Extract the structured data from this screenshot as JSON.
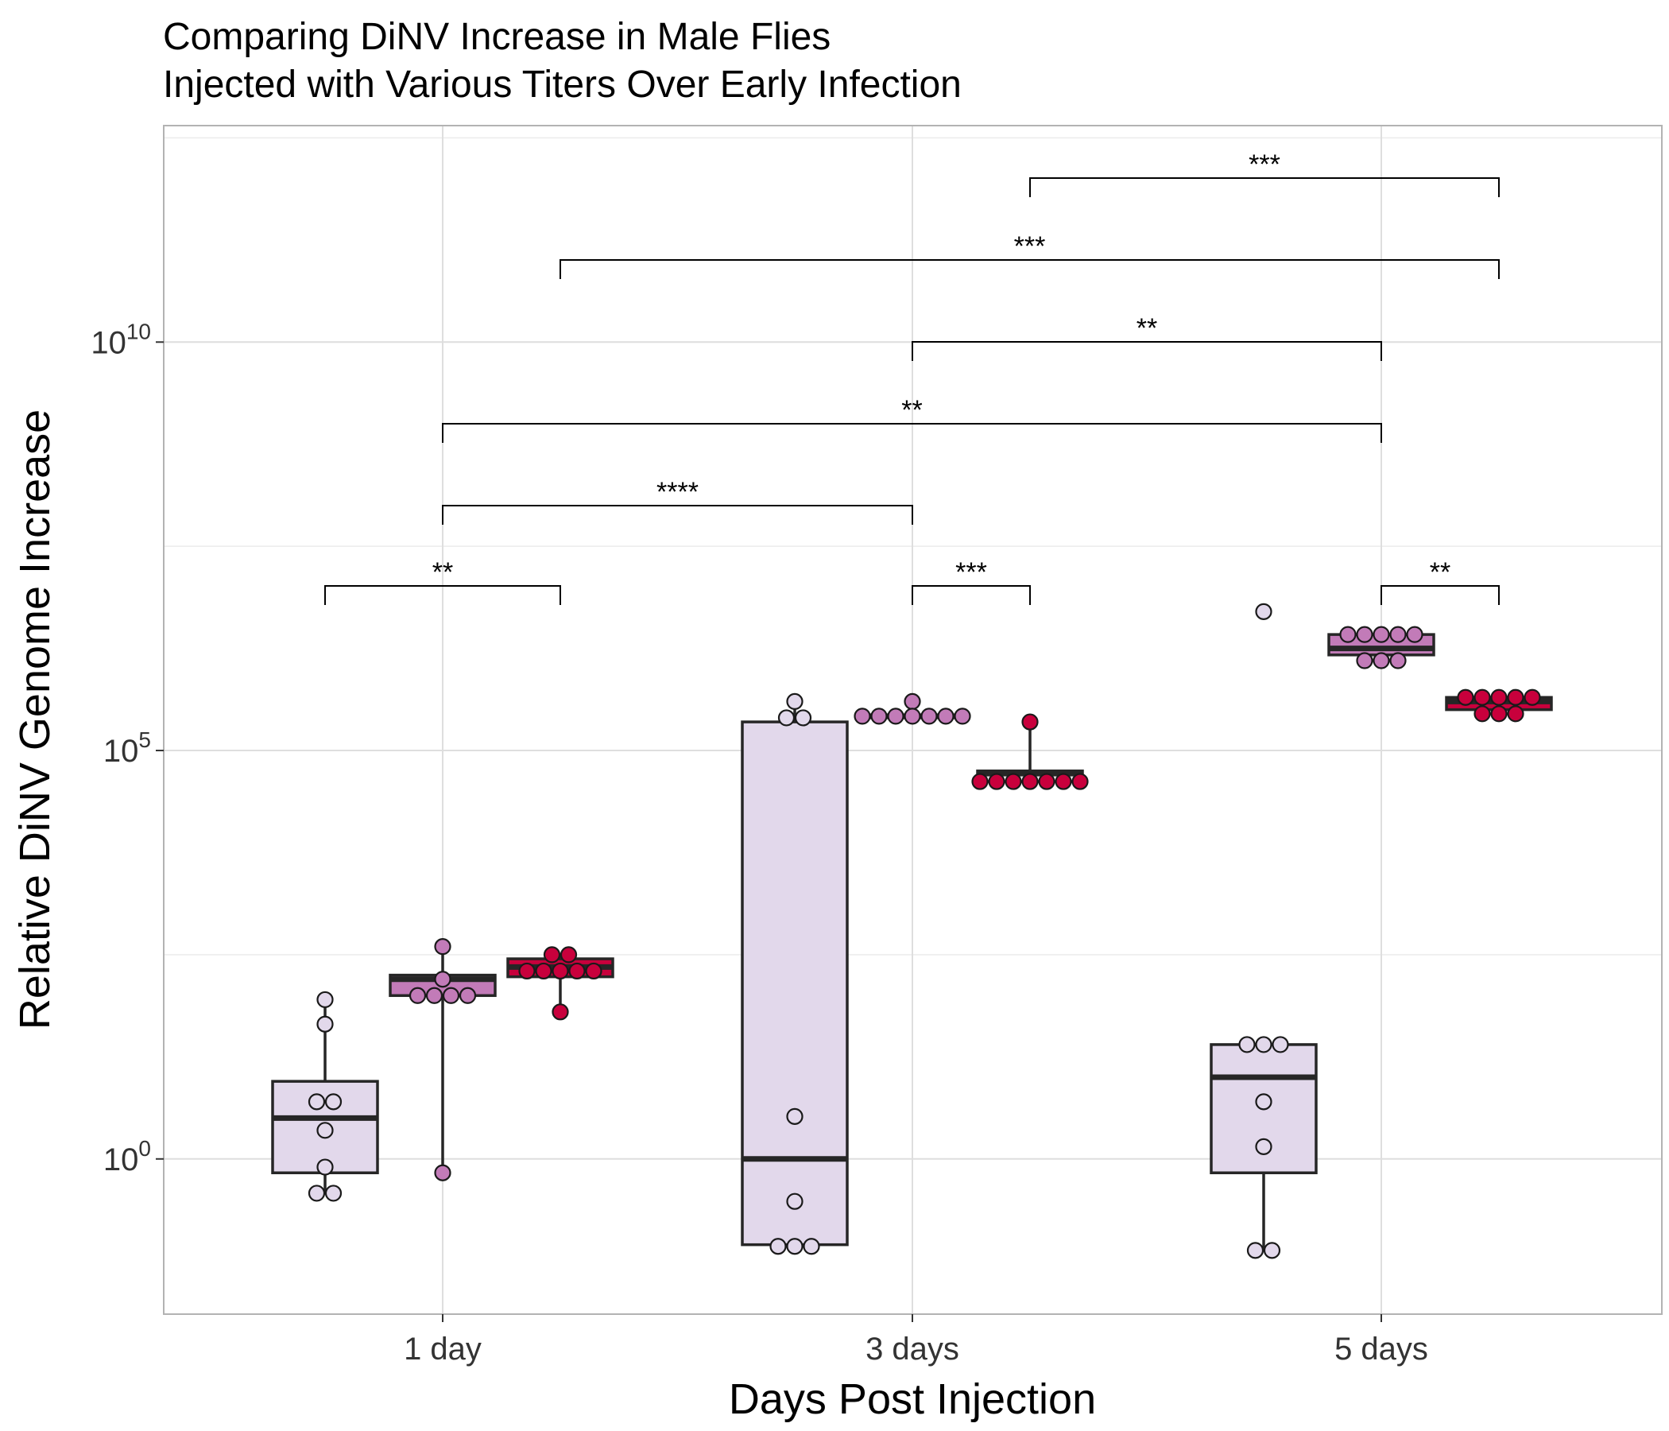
{
  "chart_data": {
    "type": "box",
    "title": "Comparing DiNV Increase in Male Flies\nInjected with Various Titers Over Early Infection",
    "title_lines": [
      "Comparing DiNV Increase in Male Flies",
      "Injected with Various Titers Over Early Infection"
    ],
    "xlabel": "Days Post Injection",
    "ylabel": "Relative DiNV Genome Increase",
    "y_scale": "log10",
    "ylim_log10": [
      -1.9,
      12.65
    ],
    "y_ticks": [
      {
        "exp": 0,
        "base": "10",
        "sup": "0"
      },
      {
        "exp": 5,
        "base": "10",
        "sup": "5"
      },
      {
        "exp": 10,
        "base": "10",
        "sup": "10"
      }
    ],
    "y_minor_grid_log10": [
      2.5,
      7.5,
      12.5
    ],
    "categories": [
      "1 day",
      "3 days",
      "5 days"
    ],
    "grid": true,
    "legend": "none",
    "series": [
      {
        "color": "#e2d8eb",
        "groups": [
          {
            "category": "1 day",
            "box_log10": {
              "min": -0.42,
              "q1": -0.17,
              "median": 0.5,
              "q3": 0.95,
              "max": 1.95
            },
            "points_log10": [
              1.95,
              1.65,
              0.7,
              0.7,
              0.35,
              -0.1,
              -0.42,
              -0.42
            ]
          },
          {
            "category": "3 days",
            "box_log10": {
              "min": -1.05,
              "q1": -1.05,
              "median": 0.0,
              "q3": 5.35,
              "max": 5.6
            },
            "points_log10": [
              5.6,
              5.4,
              5.4,
              0.52,
              -0.52,
              -1.07,
              -1.07,
              -1.07
            ]
          },
          {
            "category": "5 days",
            "box_log10": {
              "min": -1.1,
              "q1": -0.17,
              "median": 1.0,
              "q3": 1.4,
              "max": 1.4
            },
            "points_log10": [
              6.7,
              1.4,
              1.4,
              1.4,
              0.7,
              0.15,
              -1.12,
              -1.12
            ]
          }
        ]
      },
      {
        "color": "#c27bb8",
        "groups": [
          {
            "category": "1 day",
            "box_log10": {
              "min": -0.17,
              "q1": 2.0,
              "median": 2.2,
              "q3": 2.25,
              "max": 2.6
            },
            "points_log10": [
              2.6,
              2.2,
              2.0,
              2.0,
              2.0,
              2.0,
              -0.17
            ]
          },
          {
            "category": "3 days",
            "box_log10": {
              "min": 5.42,
              "q1": 5.42,
              "median": 5.42,
              "q3": 5.42,
              "max": 5.6
            },
            "points_log10": [
              5.6,
              5.42,
              5.42,
              5.42,
              5.42,
              5.42,
              5.42,
              5.42
            ]
          },
          {
            "category": "5 days",
            "box_log10": {
              "min": 6.1,
              "q1": 6.17,
              "median": 6.25,
              "q3": 6.42,
              "max": 6.42
            },
            "points_log10": [
              6.42,
              6.42,
              6.42,
              6.42,
              6.42,
              6.1,
              6.1,
              6.1
            ]
          }
        ]
      },
      {
        "color": "#c8003c",
        "groups": [
          {
            "category": "1 day",
            "box_log10": {
              "min": 1.8,
              "q1": 2.23,
              "median": 2.35,
              "q3": 2.45,
              "max": 2.5
            },
            "points_log10": [
              2.5,
              2.5,
              2.3,
              2.3,
              2.3,
              2.3,
              2.3,
              1.8
            ]
          },
          {
            "category": "3 days",
            "box_log10": {
              "min": 4.62,
              "q1": 4.7,
              "median": 4.72,
              "q3": 4.75,
              "max": 5.35
            },
            "points_log10": [
              5.35,
              4.62,
              4.62,
              4.62,
              4.62,
              4.62,
              4.62,
              4.62
            ]
          },
          {
            "category": "5 days",
            "box_log10": {
              "min": 5.45,
              "q1": 5.5,
              "median": 5.6,
              "q3": 5.65,
              "max": 5.65
            },
            "points_log10": [
              5.65,
              5.65,
              5.65,
              5.65,
              5.65,
              5.45,
              5.45,
              5.45
            ]
          }
        ]
      }
    ],
    "significance": [
      {
        "from_series": 0,
        "from_category": 0,
        "to_series": 2,
        "to_category": 0,
        "label": "**"
      },
      {
        "from_series": 1,
        "from_category": 1,
        "to_series": 2,
        "to_category": 1,
        "label": "***"
      },
      {
        "from_series": 1,
        "from_category": 2,
        "to_series": 2,
        "to_category": 2,
        "label": "**"
      },
      {
        "from_series": 1,
        "from_category": 0,
        "to_series": 1,
        "to_category": 1,
        "label": "****"
      },
      {
        "from_series": 1,
        "from_category": 0,
        "to_series": 1,
        "to_category": 2,
        "label": "**"
      },
      {
        "from_series": 1,
        "from_category": 1,
        "to_series": 1,
        "to_category": 2,
        "label": "**"
      },
      {
        "from_series": 2,
        "from_category": 0,
        "to_series": 2,
        "to_category": 2,
        "label": "***"
      },
      {
        "from_series": 2,
        "from_category": 1,
        "to_series": 2,
        "to_category": 2,
        "label": "***"
      }
    ]
  }
}
